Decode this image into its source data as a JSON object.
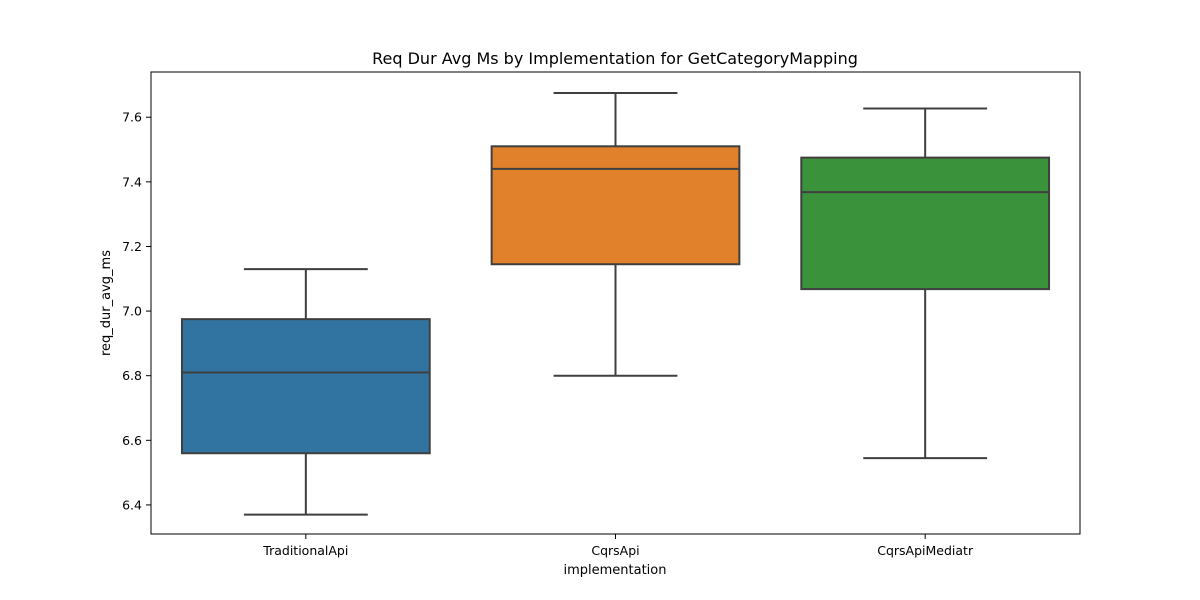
{
  "chart_data": {
    "type": "box",
    "title": "Req Dur Avg Ms by Implementation for GetCategoryMapping",
    "xlabel": "implementation",
    "ylabel": "req_dur_avg_ms",
    "ylim": [
      6.31,
      7.74
    ],
    "yticks": [
      6.4,
      6.6,
      6.8,
      7.0,
      7.2,
      7.4,
      7.6
    ],
    "ytick_labels": [
      "6.4",
      "6.6",
      "6.8",
      "7.0",
      "7.2",
      "7.4",
      "7.6"
    ],
    "grid": false,
    "categories": [
      "TraditionalApi",
      "CqrsApi",
      "CqrsApiMediatr"
    ],
    "boxes": [
      {
        "category": "TraditionalApi",
        "whisker_low": 6.37,
        "q1": 6.56,
        "median": 6.81,
        "q3": 6.975,
        "whisker_high": 7.13,
        "color": "#3274a1"
      },
      {
        "category": "CqrsApi",
        "whisker_low": 6.8,
        "q1": 7.145,
        "median": 7.44,
        "q3": 7.51,
        "whisker_high": 7.675,
        "color": "#e1812c"
      },
      {
        "category": "CqrsApiMediatr",
        "whisker_low": 6.545,
        "q1": 7.068,
        "median": 7.368,
        "q3": 7.475,
        "whisker_high": 7.627,
        "color": "#3a923a"
      }
    ],
    "line_color": "#3f3f3f"
  }
}
